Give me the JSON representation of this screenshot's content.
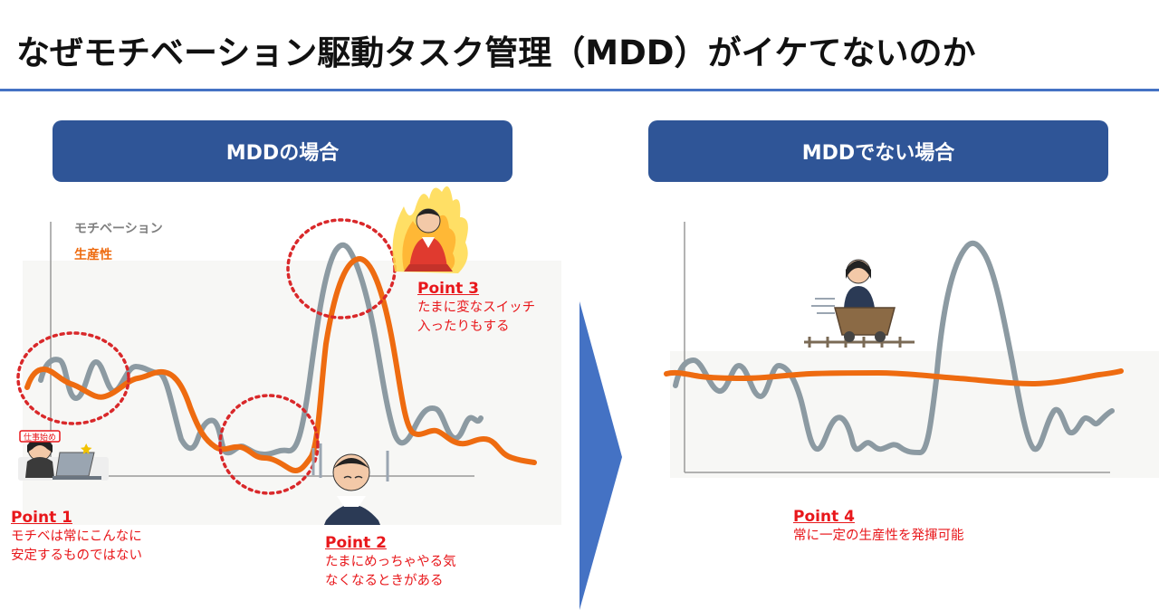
{
  "title": "なぜモチベーション駆動タスク管理（MDD）がイケてないのか",
  "colors": {
    "accent_blue": "#2f5597",
    "rule_blue": "#4472c4",
    "motivation_gray": "#8c9aa2",
    "productivity_orange": "#ee6b10",
    "point_red": "#e8171b",
    "highlight_red": "#d9282a",
    "arrow_blue": "#4472c4"
  },
  "left_panel": {
    "header": "MDDの場合",
    "legend": {
      "motivation": "モチベーション",
      "productivity": "生産性"
    },
    "badge": "仕事始め",
    "points": [
      {
        "title": "Point 1",
        "lines": [
          "モチベは常にこんなに",
          "安定するものではない"
        ]
      },
      {
        "title": "Point 2",
        "lines": [
          "たまにめっちゃやる気",
          "なくなるときがある"
        ]
      },
      {
        "title": "Point 3",
        "lines": [
          "たまに変なスイッチ",
          "入ったりもする"
        ]
      }
    ]
  },
  "right_panel": {
    "header": "MDDでない場合",
    "points": [
      {
        "title": "Point 4",
        "lines": [
          "常に一定の生産性を発揮可能"
        ]
      }
    ]
  },
  "icons": [
    "office-worker-laptop-icon",
    "discouraged-worker-icon",
    "fired-up-worker-icon",
    "mine-cart-rider-icon",
    "arrow-right-icon"
  ]
}
